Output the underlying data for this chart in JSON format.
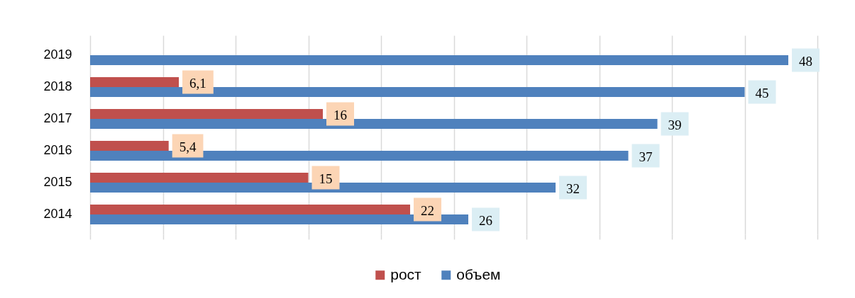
{
  "chart_data": {
    "type": "bar",
    "orientation": "horizontal",
    "categories": [
      "2019",
      "2018",
      "2017",
      "2016",
      "2015",
      "2014"
    ],
    "series": [
      {
        "name": "рост",
        "color": "#c0504d",
        "values": [
          null,
          6.1,
          16,
          5.4,
          15,
          22
        ],
        "value_labels": [
          null,
          "6,1",
          "16",
          "5,4",
          "15",
          "22"
        ]
      },
      {
        "name": "объем",
        "color": "#4f81bd",
        "values": [
          48,
          45,
          39,
          37,
          32,
          26
        ],
        "value_labels": [
          "48",
          "45",
          "39",
          "37",
          "32",
          "26"
        ]
      }
    ],
    "xlim": [
      0,
      50
    ],
    "xticks": [
      {
        "value": 0,
        "label": null
      },
      {
        "value": 5,
        "label": null
      },
      {
        "value": 10,
        "label": null
      },
      {
        "value": 15,
        "label": null
      },
      {
        "value": 20,
        "label": null
      },
      {
        "value": 25,
        "label": null
      },
      {
        "value": 30,
        "label": null
      },
      {
        "value": 35,
        "label": null
      },
      {
        "value": 40,
        "label": null
      },
      {
        "value": 45,
        "label": null
      },
      {
        "value": 50,
        "label": null
      }
    ],
    "grid": "x",
    "legend": "bottom",
    "tick_labels": "y"
  }
}
